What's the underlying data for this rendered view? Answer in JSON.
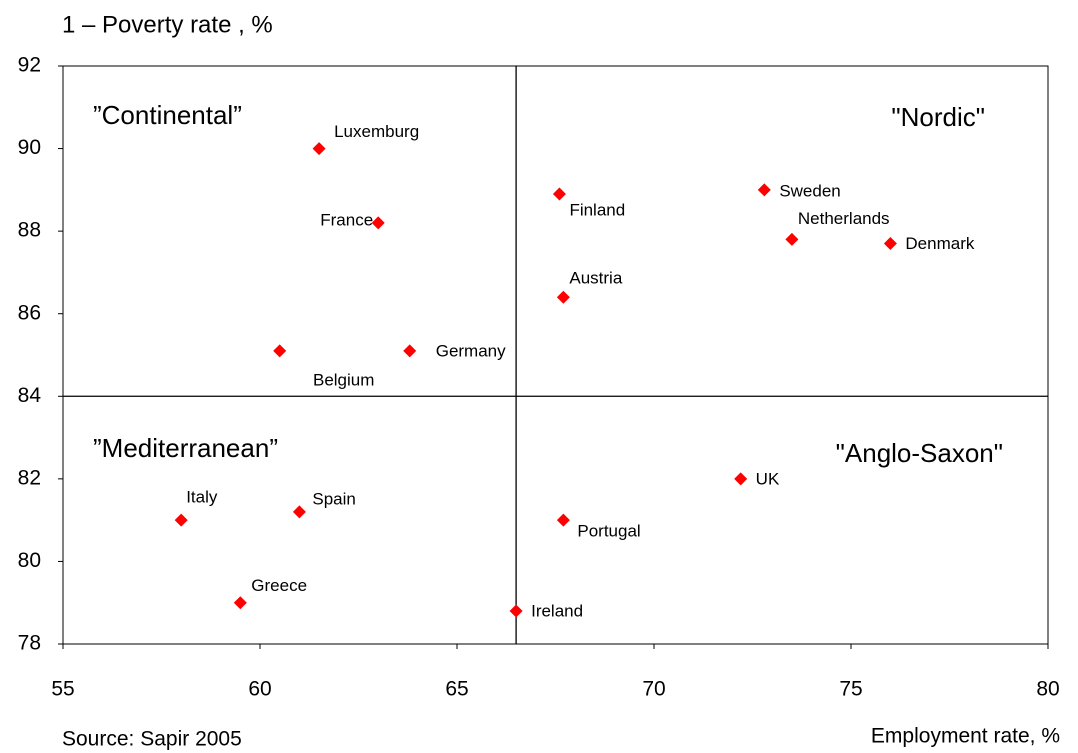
{
  "chart_data": {
    "type": "scatter",
    "ylabel": "1 – Poverty rate , %",
    "xlabel": "Employment rate, %",
    "source": "Source: Sapir 2005",
    "color": "#ff0000",
    "xlim": [
      55,
      80
    ],
    "xticks": [
      55,
      60,
      65,
      70,
      75,
      80
    ],
    "ylim": [
      78,
      92
    ],
    "yticks": [
      78,
      80,
      82,
      84,
      86,
      88,
      90,
      92
    ],
    "dividers": {
      "x": 66.5,
      "y": 84
    },
    "annotations": [
      "”Continental”",
      "\"Nordic\"",
      "”Mediterranean”",
      "\"Anglo-Saxon\""
    ],
    "points": [
      {
        "label": "Luxemburg",
        "x": 61.5,
        "y": 90.0
      },
      {
        "label": "France",
        "x": 63.0,
        "y": 88.2
      },
      {
        "label": "Finland",
        "x": 67.6,
        "y": 88.9
      },
      {
        "label": "Sweden",
        "x": 72.8,
        "y": 89.0
      },
      {
        "label": "Netherlands",
        "x": 73.5,
        "y": 87.8
      },
      {
        "label": "Denmark",
        "x": 76.0,
        "y": 87.7
      },
      {
        "label": "Austria",
        "x": 67.7,
        "y": 86.4
      },
      {
        "label": "Germany",
        "x": 63.8,
        "y": 85.1
      },
      {
        "label": "Belgium",
        "x": 60.5,
        "y": 85.1
      },
      {
        "label": "Italy",
        "x": 58.0,
        "y": 81.0
      },
      {
        "label": "Spain",
        "x": 61.0,
        "y": 81.2
      },
      {
        "label": "Greece",
        "x": 59.5,
        "y": 79.0
      },
      {
        "label": "Portugal",
        "x": 67.7,
        "y": 81.0
      },
      {
        "label": "Ireland",
        "x": 66.5,
        "y": 78.8
      },
      {
        "label": "UK",
        "x": 72.2,
        "y": 82.0
      }
    ]
  }
}
